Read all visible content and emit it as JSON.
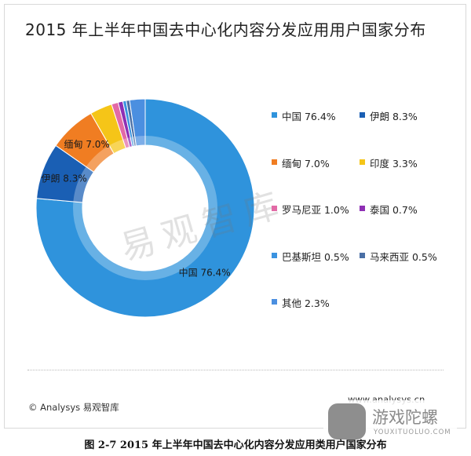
{
  "chart_data": {
    "type": "pie",
    "style": "donut",
    "title": "2015 年上半年中国去中心化内容分发应用用户国家分布",
    "unit": "%",
    "slices": [
      {
        "name": "中国",
        "value": 76.4,
        "label": "76.4%",
        "color": "#2f93dc"
      },
      {
        "name": "伊朗",
        "value": 8.3,
        "label": "8.3%",
        "color": "#1a5fb4"
      },
      {
        "name": "缅甸",
        "value": 7.0,
        "label": "7.0%",
        "color": "#f07d22"
      },
      {
        "name": "印度",
        "value": 3.3,
        "label": "3.3%",
        "color": "#f5c518"
      },
      {
        "name": "罗马尼亚",
        "value": 1.0,
        "label": "1.0%",
        "color": "#e26aa6"
      },
      {
        "name": "泰国",
        "value": 0.7,
        "label": "0.7%",
        "color": "#8e2fb4"
      },
      {
        "name": "巴基斯坦",
        "value": 0.5,
        "label": "0.5%",
        "color": "#3a93e0"
      },
      {
        "name": "马来西亚",
        "value": 0.5,
        "label": "0.5%",
        "color": "#4a6fa5"
      },
      {
        "name": "其他",
        "value": 2.3,
        "label": "2.3%",
        "color": "#4b8fe0"
      }
    ],
    "slice_labels_shown": [
      "中国",
      "伊朗",
      "缅甸"
    ],
    "legend_position": "right"
  },
  "watermark": "易观智库",
  "footer": {
    "source": "© Analysys 易观智库",
    "url": "www.analysys.cn"
  },
  "caption": "图 2-7 2015 年上半年中国去中心化内容分发应用类用户国家分布",
  "logo": {
    "name": "游戏陀螺",
    "domain": "YOUXITUOLUO.COM"
  }
}
